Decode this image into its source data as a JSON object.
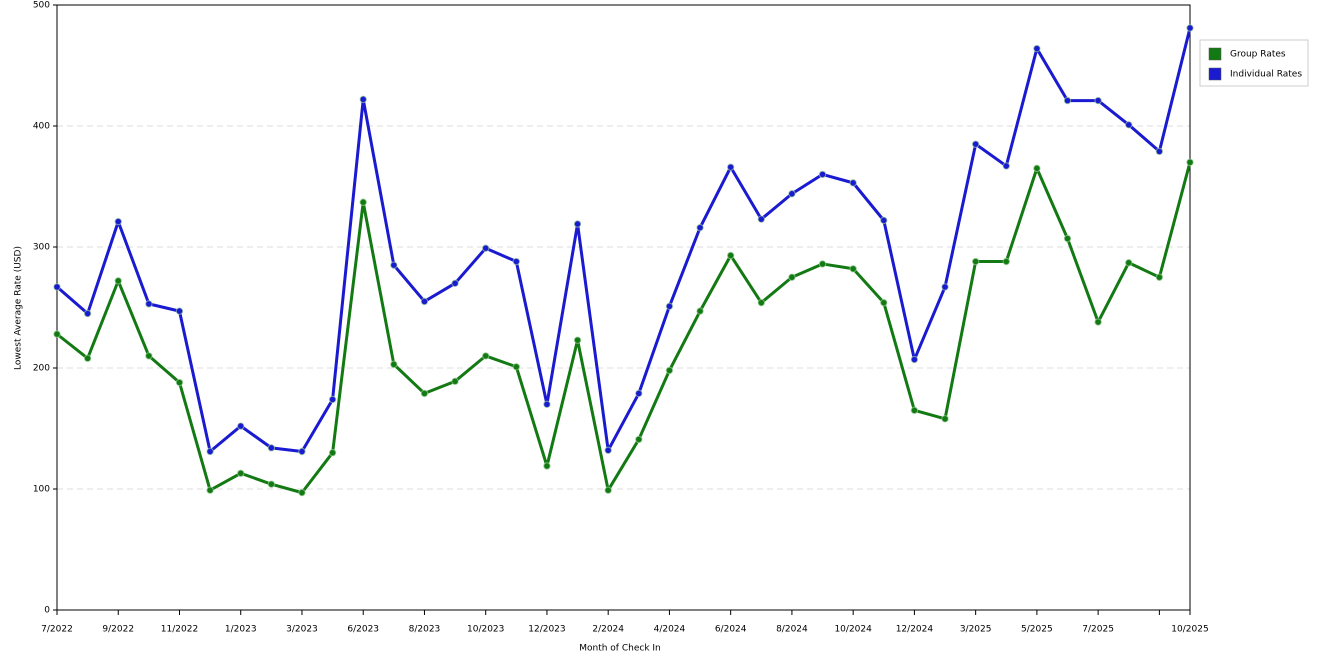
{
  "chart_data": {
    "type": "line",
    "x_label": "Month of Check In",
    "y_label": "Lowest Average Rate (USD)",
    "categories": [
      "7/2022",
      null,
      "9/2022",
      null,
      "11/2022",
      null,
      "1/2023",
      null,
      "3/2023",
      null,
      "6/2023",
      null,
      "8/2023",
      null,
      "10/2023",
      null,
      "12/2023",
      null,
      "2/2024",
      null,
      "4/2024",
      null,
      "6/2024",
      null,
      "8/2024",
      null,
      "10/2024",
      null,
      "12/2024",
      null,
      "3/2025",
      null,
      "5/2025",
      null,
      "7/2025",
      null,
      null,
      "10/2025"
    ],
    "series": [
      {
        "name": "Group Rates",
        "color": "#137a13",
        "values": [
          228,
          208,
          272,
          210,
          188,
          99,
          113,
          104,
          97,
          130,
          337,
          203,
          179,
          189,
          210,
          201,
          119,
          223,
          99,
          141,
          198,
          247,
          293,
          254,
          275,
          286,
          282,
          254,
          165,
          158,
          288,
          288,
          365,
          307,
          238,
          287,
          275,
          370
        ]
      },
      {
        "name": "Individual Rates",
        "color": "#1a1ad0",
        "values": [
          267,
          245,
          321,
          253,
          247,
          131,
          152,
          134,
          131,
          174,
          422,
          285,
          255,
          270,
          299,
          288,
          170,
          319,
          132,
          179,
          251,
          316,
          366,
          323,
          344,
          360,
          353,
          322,
          207,
          267,
          385,
          367,
          464,
          421,
          421,
          401,
          379,
          481
        ]
      }
    ],
    "ylim": [
      0,
      500
    ],
    "yticks": [
      0,
      100,
      200,
      300,
      400,
      500
    ],
    "grid": true,
    "legend": "right"
  }
}
